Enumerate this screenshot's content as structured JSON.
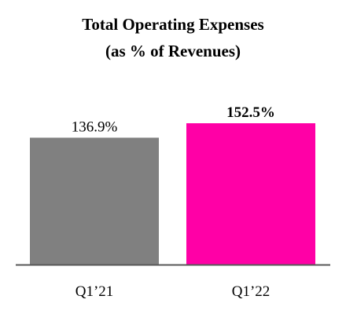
{
  "chart_data": {
    "type": "bar",
    "title": "Total Operating Expenses",
    "subtitle": "(as % of Revenues)",
    "categories": [
      "Q1’21",
      "Q1’22"
    ],
    "values": [
      136.9,
      152.5
    ],
    "value_labels": [
      "136.9%",
      "152.5%"
    ],
    "value_label_bold": [
      false,
      true
    ],
    "colors": [
      "#808080",
      "#ff00a6"
    ],
    "ylim": [
      0,
      170
    ],
    "grid": false,
    "legend": "none",
    "xlabel": "",
    "ylabel": ""
  }
}
